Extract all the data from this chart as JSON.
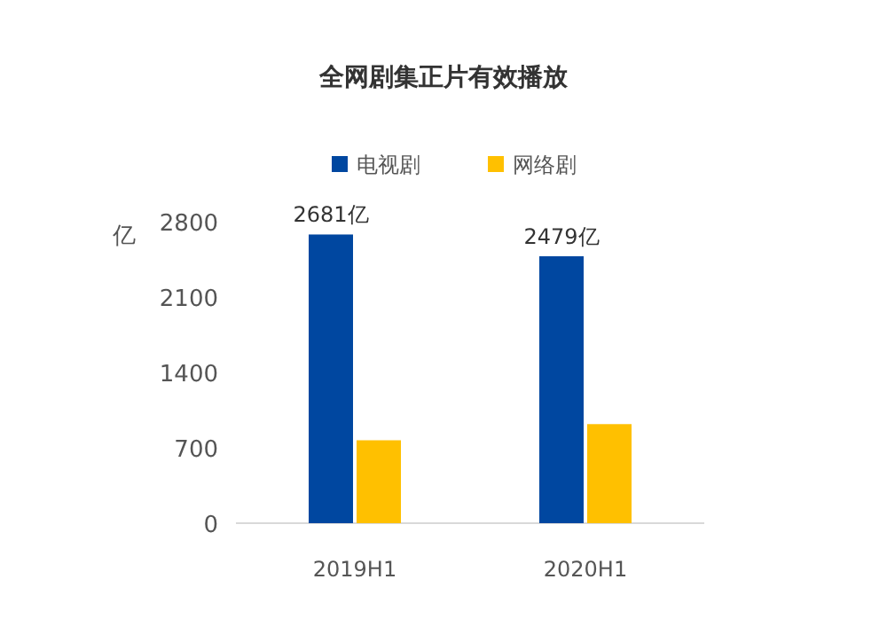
{
  "chart_data": {
    "type": "bar",
    "title": "全网剧集正片有效播放",
    "ylabel": "亿",
    "categories": [
      "2019H1",
      "2020H1"
    ],
    "series": [
      {
        "name": "电视剧",
        "color": "#0047a0",
        "values": [
          2681,
          2479
        ],
        "value_labels": [
          "2681亿",
          "2479亿"
        ]
      },
      {
        "name": "网络剧",
        "color": "#ffc000",
        "values": [
          770,
          920
        ],
        "value_labels": [
          null,
          null
        ]
      }
    ],
    "ylim": [
      0,
      2800
    ],
    "yticks": [
      0,
      700,
      1400,
      2100,
      2800
    ],
    "grid": false,
    "legend": "top"
  }
}
